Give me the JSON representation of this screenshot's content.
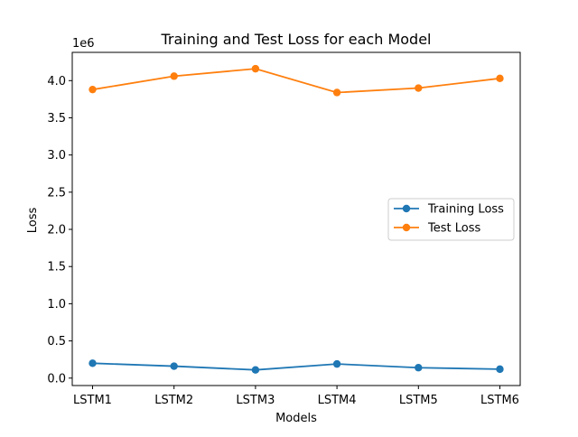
{
  "chart_data": {
    "type": "line",
    "title": "Training and Test Loss for each Model",
    "xlabel": "Models",
    "ylabel": "Loss",
    "y_offset_text": "1e6",
    "categories": [
      "LSTM1",
      "LSTM2",
      "LSTM3",
      "LSTM4",
      "LSTM5",
      "LSTM6"
    ],
    "ylim": [
      -0.1,
      4.38
    ],
    "y_ticks": [
      0.0,
      0.5,
      1.0,
      1.5,
      2.0,
      2.5,
      3.0,
      3.5,
      4.0
    ],
    "y_tick_labels": [
      "0.0",
      "0.5",
      "1.0",
      "1.5",
      "2.0",
      "2.5",
      "3.0",
      "3.5",
      "4.0"
    ],
    "y_units_multiplier": 1000000,
    "series": [
      {
        "name": "Training Loss",
        "color": "#1f77b4",
        "values": [
          0.2,
          0.16,
          0.11,
          0.19,
          0.14,
          0.12
        ]
      },
      {
        "name": "Test Loss",
        "color": "#ff7f0e",
        "values": [
          3.88,
          4.06,
          4.16,
          3.84,
          3.9,
          4.03
        ]
      }
    ],
    "legend_position": "center-right",
    "grid": false
  }
}
